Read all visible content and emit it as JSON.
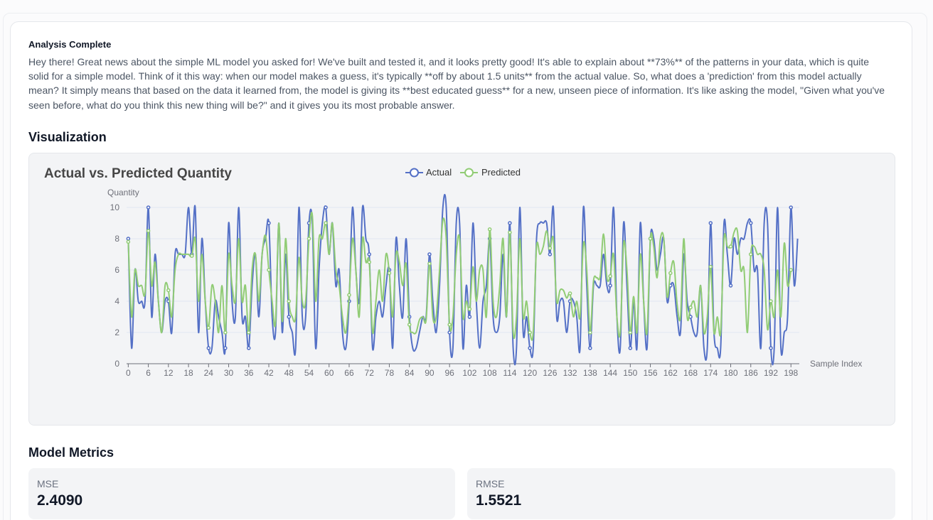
{
  "status": {
    "title": "Analysis Complete"
  },
  "message": "Hey there! Great news about the simple ML model you asked for! We've built and tested it, and it looks pretty good! It's able to explain about **73%** of the patterns in your data, which is quite solid for a simple model. Think of it this way: when our model makes a guess, it's typically **off by about 1.5 units** from the actual value. So, what does a 'prediction' from this model actually mean? It simply means that based on the data it learned from, the model is giving its **best educated guess** for a new, unseen piece of information. It's like asking the model, \"Given what you've seen before, what do you think this new thing will be?\" and it gives you its most probable answer.",
  "visualization": {
    "heading": "Visualization"
  },
  "metrics": {
    "heading": "Model Metrics",
    "items": [
      {
        "label": "MSE",
        "value": "2.4090"
      },
      {
        "label": "RMSE",
        "value": "1.5521"
      }
    ]
  },
  "colors": {
    "actual": "#5470c6",
    "predicted": "#91cc75",
    "axis": "#6e7079",
    "grid": "#e0e6f1"
  },
  "chart_data": {
    "type": "line",
    "title": "Actual vs. Predicted Quantity",
    "xlabel": "Sample Index",
    "ylabel": "Quantity",
    "ylim": [
      0,
      10
    ],
    "y_ticks": [
      0,
      2,
      4,
      6,
      8,
      10
    ],
    "x_ticks": [
      0,
      6,
      12,
      18,
      24,
      30,
      36,
      42,
      48,
      54,
      60,
      66,
      72,
      78,
      84,
      90,
      96,
      102,
      108,
      114,
      120,
      126,
      132,
      138,
      144,
      150,
      156,
      162,
      168,
      174,
      180,
      186,
      192,
      198
    ],
    "legend_position": "top-center",
    "series": [
      {
        "name": "Actual",
        "values": [
          8,
          1,
          6,
          4,
          4,
          4,
          10,
          3,
          7,
          4,
          2,
          4,
          4,
          2,
          7,
          7,
          7,
          7,
          10,
          7,
          10,
          2,
          8,
          4,
          1,
          1,
          4,
          3,
          2,
          1,
          9,
          4,
          3,
          10,
          3,
          3,
          1,
          5,
          7,
          3,
          7,
          8,
          9,
          3,
          2,
          9,
          2,
          7,
          3,
          2,
          1,
          10,
          3,
          3,
          9,
          9,
          1,
          6,
          9,
          10,
          7,
          9,
          5,
          6,
          2,
          1,
          4,
          10,
          6,
          4,
          10,
          8,
          7,
          1,
          3,
          4,
          3,
          5,
          6,
          1,
          8,
          5,
          3,
          8,
          3,
          1,
          1,
          2,
          3,
          3,
          7,
          4,
          2,
          5,
          10,
          10,
          2,
          1,
          9,
          9,
          1,
          5,
          3,
          9,
          4,
          1,
          4,
          5,
          8,
          3,
          2,
          3,
          7,
          3,
          9,
          1,
          1,
          10,
          2,
          3,
          1,
          1,
          8,
          9,
          9,
          9,
          7,
          10,
          3,
          4,
          4,
          2,
          4,
          4,
          3,
          1,
          10,
          5,
          1,
          5,
          5,
          5,
          7,
          5,
          5,
          10,
          3,
          1,
          9,
          5,
          1,
          4,
          1,
          9,
          4,
          1,
          8,
          8,
          6,
          7,
          8,
          4,
          5,
          5,
          3,
          2,
          7,
          4,
          3,
          2,
          2,
          5,
          1,
          1,
          9,
          2,
          1,
          1,
          9,
          7,
          5,
          8,
          7,
          8,
          8,
          9,
          9,
          6,
          6,
          1,
          9,
          9,
          1,
          1,
          10,
          1,
          2,
          3,
          10,
          5,
          8
        ]
      },
      {
        "name": "Predicted",
        "values": [
          7.8,
          3,
          6,
          5,
          5,
          4.5,
          8.5,
          5,
          6.5,
          4,
          2,
          5,
          4.7,
          3,
          6,
          7,
          7,
          7,
          7,
          6.9,
          8,
          4,
          7,
          4,
          2.3,
          5,
          4,
          2,
          5,
          2,
          7,
          5,
          4,
          8,
          4,
          5,
          2,
          6,
          7,
          4,
          7,
          8.2,
          6,
          4,
          2.6,
          9,
          2.7,
          8,
          4,
          3,
          3,
          6.8,
          4,
          4,
          8,
          9.5,
          4,
          8,
          8,
          9,
          7,
          9,
          6,
          5,
          3,
          2,
          4.4,
          8,
          6,
          3,
          8,
          6.5,
          6.5,
          2,
          4,
          6,
          4,
          7,
          5.8,
          3,
          7,
          6.5,
          5,
          6.4,
          2.5,
          2,
          2,
          2.8,
          3,
          2.8,
          6.4,
          3,
          3,
          6,
          9.2,
          8,
          2.5,
          3,
          7,
          8,
          3,
          4,
          3.5,
          6.2,
          4,
          6,
          6,
          3,
          8.6,
          4,
          3,
          5,
          8,
          3,
          8.4,
          2,
          3,
          8,
          3,
          4,
          2,
          2,
          7.5,
          7,
          7.5,
          8.5,
          7.4,
          8,
          4,
          4.7,
          4.7,
          4.2,
          4.5,
          3,
          4,
          3,
          7.7,
          6,
          2,
          5.3,
          5.5,
          5.6,
          8.3,
          5.5,
          5.6,
          7,
          3,
          2,
          7.7,
          6,
          2,
          4.3,
          2,
          7,
          4,
          2,
          8,
          7.5,
          5.5,
          8,
          8,
          4.3,
          5.8,
          6.5,
          3.8,
          3,
          8,
          3,
          3.6,
          4,
          3,
          5,
          2,
          3,
          6.2,
          2,
          3,
          2,
          8,
          7.5,
          7.5,
          8.4,
          8.5,
          6,
          6,
          2,
          7,
          7.5,
          7,
          7,
          6,
          2.2,
          4,
          3,
          6,
          3,
          7.7,
          5,
          6
        ]
      }
    ]
  }
}
